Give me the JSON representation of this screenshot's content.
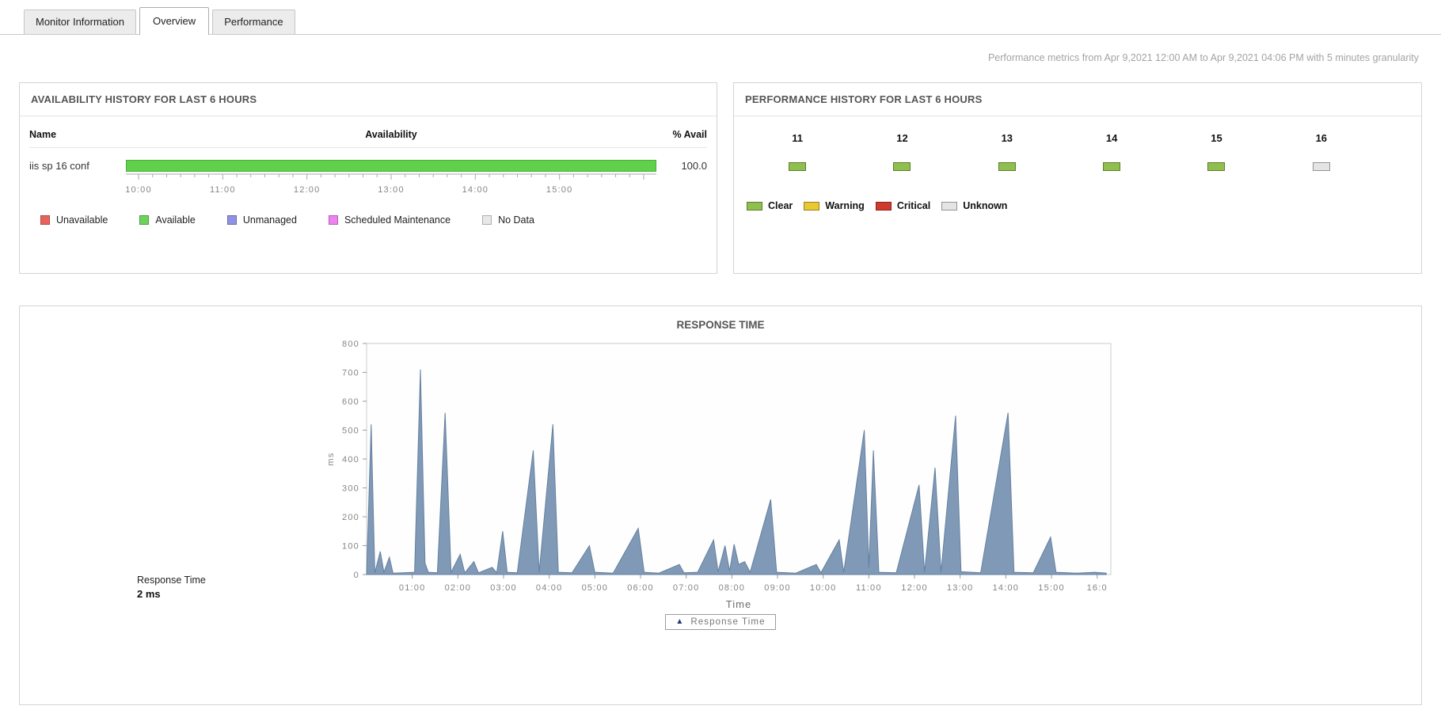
{
  "tabs": [
    {
      "label": "Monitor Information"
    },
    {
      "label": "Overview"
    },
    {
      "label": "Performance"
    }
  ],
  "header": {
    "metrics_note": "Performance metrics from Apr 9,2021 12:00 AM to Apr 9,2021 04:06 PM with 5 minutes granularity"
  },
  "availability": {
    "title": "AVAILABILITY HISTORY FOR LAST 6 HOURS",
    "columns": {
      "name": "Name",
      "availability": "Availability",
      "percent": "% Avail"
    },
    "row": {
      "name": "iis sp 16 conf",
      "percent": "100.0",
      "availability_pct": 100.0,
      "bar_color": "#5fd14b"
    },
    "time_ticks": [
      "10:00",
      "11:00",
      "12:00",
      "13:00",
      "14:00",
      "15:00"
    ],
    "legend": [
      {
        "label": "Unavailable",
        "color": "#e9615d"
      },
      {
        "label": "Available",
        "color": "#6dd35c"
      },
      {
        "label": "Unmanaged",
        "color": "#8f92e3"
      },
      {
        "label": "Scheduled Maintenance",
        "color": "#ee82ee"
      },
      {
        "label": "No Data",
        "color": "#e8e8e8"
      }
    ]
  },
  "performance": {
    "title": "PERFORMANCE HISTORY FOR LAST 6 HOURS",
    "hours": [
      {
        "label": "11",
        "status": "clear"
      },
      {
        "label": "12",
        "status": "clear"
      },
      {
        "label": "13",
        "status": "clear"
      },
      {
        "label": "14",
        "status": "clear"
      },
      {
        "label": "15",
        "status": "clear"
      },
      {
        "label": "16",
        "status": "unknown"
      }
    ],
    "status_colors": {
      "clear": "#8fbf4d",
      "warning": "#e9c832",
      "critical": "#cf3a2c",
      "unknown": "#e4e4e4"
    },
    "legend": [
      {
        "label": "Clear",
        "status": "clear"
      },
      {
        "label": "Warning",
        "status": "warning"
      },
      {
        "label": "Critical",
        "status": "critical"
      },
      {
        "label": "Unknown",
        "status": "unknown"
      }
    ]
  },
  "response_time": {
    "footer_label": "Response Time",
    "footer_value": "2 ms"
  },
  "chart_data": {
    "type": "area",
    "title": "RESPONSE TIME",
    "xlabel": "Time",
    "ylabel": "ms",
    "ylim": [
      0,
      800
    ],
    "y_ticks": [
      0,
      100,
      200,
      300,
      400,
      500,
      600,
      700,
      800
    ],
    "x_range": [
      0,
      16.3
    ],
    "x_tick_hours": [
      1,
      2,
      3,
      4,
      5,
      6,
      7,
      8,
      9,
      10,
      11,
      12,
      13,
      14,
      15,
      16
    ],
    "x_tick_labels": [
      "01:00",
      "02:00",
      "03:00",
      "04:00",
      "05:00",
      "06:00",
      "07:00",
      "08:00",
      "09:00",
      "10:00",
      "11:00",
      "12:00",
      "13:00",
      "14:00",
      "15:00",
      "16:0"
    ],
    "legend_position": "bottom",
    "grid": false,
    "series": [
      {
        "name": "Response Time",
        "line_color": "#64809f",
        "fill_color": "#8099b7",
        "points": [
          [
            0.0,
            4
          ],
          [
            0.1,
            520
          ],
          [
            0.18,
            6
          ],
          [
            0.3,
            80
          ],
          [
            0.38,
            8
          ],
          [
            0.5,
            60
          ],
          [
            0.58,
            5
          ],
          [
            0.8,
            6
          ],
          [
            1.05,
            8
          ],
          [
            1.18,
            710
          ],
          [
            1.28,
            40
          ],
          [
            1.35,
            8
          ],
          [
            1.55,
            6
          ],
          [
            1.72,
            560
          ],
          [
            1.85,
            8
          ],
          [
            2.05,
            70
          ],
          [
            2.15,
            6
          ],
          [
            2.35,
            45
          ],
          [
            2.45,
            6
          ],
          [
            2.75,
            25
          ],
          [
            2.85,
            6
          ],
          [
            2.98,
            150
          ],
          [
            3.08,
            8
          ],
          [
            3.3,
            6
          ],
          [
            3.65,
            430
          ],
          [
            3.78,
            8
          ],
          [
            4.08,
            520
          ],
          [
            4.2,
            8
          ],
          [
            4.5,
            6
          ],
          [
            4.88,
            100
          ],
          [
            5.0,
            8
          ],
          [
            5.4,
            5
          ],
          [
            5.95,
            160
          ],
          [
            6.08,
            8
          ],
          [
            6.4,
            5
          ],
          [
            6.85,
            35
          ],
          [
            6.95,
            6
          ],
          [
            7.25,
            8
          ],
          [
            7.6,
            120
          ],
          [
            7.7,
            10
          ],
          [
            7.85,
            100
          ],
          [
            7.95,
            12
          ],
          [
            8.05,
            105
          ],
          [
            8.15,
            35
          ],
          [
            8.28,
            45
          ],
          [
            8.4,
            8
          ],
          [
            8.85,
            260
          ],
          [
            8.98,
            8
          ],
          [
            9.4,
            5
          ],
          [
            9.85,
            35
          ],
          [
            9.95,
            6
          ],
          [
            10.35,
            120
          ],
          [
            10.45,
            8
          ],
          [
            10.9,
            500
          ],
          [
            11.0,
            25
          ],
          [
            11.1,
            430
          ],
          [
            11.22,
            8
          ],
          [
            11.6,
            6
          ],
          [
            12.1,
            310
          ],
          [
            12.22,
            8
          ],
          [
            12.45,
            370
          ],
          [
            12.58,
            8
          ],
          [
            12.9,
            550
          ],
          [
            13.02,
            10
          ],
          [
            13.45,
            6
          ],
          [
            14.05,
            560
          ],
          [
            14.18,
            8
          ],
          [
            14.6,
            6
          ],
          [
            14.98,
            130
          ],
          [
            15.1,
            8
          ],
          [
            15.55,
            5
          ],
          [
            15.95,
            8
          ],
          [
            16.2,
            5
          ]
        ]
      }
    ]
  }
}
